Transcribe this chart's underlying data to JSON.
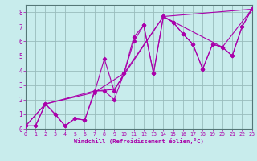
{
  "title": "",
  "xlabel": "Windchill (Refroidissement éolien,°C)",
  "bg_color": "#c8ecec",
  "line_color": "#aa00aa",
  "grid_color": "#99bbbb",
  "series1_x": [
    0,
    1,
    2,
    3,
    4,
    5,
    6,
    7,
    8,
    9,
    10,
    11,
    12,
    13,
    14,
    15,
    16,
    17,
    18,
    19,
    20,
    21,
    22,
    23
  ],
  "series1_y": [
    0.2,
    0.2,
    1.7,
    1.0,
    0.2,
    0.7,
    0.6,
    2.5,
    4.8,
    2.6,
    3.8,
    6.3,
    7.1,
    3.8,
    7.7,
    7.3,
    6.5,
    5.8,
    4.1,
    5.8,
    5.6,
    5.0,
    7.0,
    8.2
  ],
  "series2_x": [
    0,
    1,
    2,
    3,
    4,
    5,
    6,
    7,
    8,
    9,
    10,
    11,
    12,
    13,
    14,
    15,
    16,
    17,
    18,
    19,
    20,
    21,
    22,
    23
  ],
  "series2_y": [
    0.2,
    0.2,
    1.7,
    1.0,
    0.2,
    0.7,
    0.6,
    2.6,
    2.6,
    2.0,
    3.8,
    6.0,
    7.1,
    3.8,
    7.7,
    7.3,
    6.5,
    5.8,
    4.1,
    5.8,
    5.6,
    5.0,
    7.0,
    8.2
  ],
  "series3_x": [
    0,
    2,
    7,
    9,
    14,
    23
  ],
  "series3_y": [
    0.2,
    1.7,
    2.6,
    2.7,
    7.7,
    8.2
  ],
  "series4_x": [
    0,
    2,
    7,
    10,
    14,
    20,
    23
  ],
  "series4_y": [
    0.2,
    1.7,
    2.5,
    3.8,
    7.7,
    5.6,
    8.2
  ],
  "xlim": [
    0,
    23
  ],
  "ylim": [
    0,
    8.5
  ],
  "xticks": [
    0,
    1,
    2,
    3,
    4,
    5,
    6,
    7,
    8,
    9,
    10,
    11,
    12,
    13,
    14,
    15,
    16,
    17,
    18,
    19,
    20,
    21,
    22,
    23
  ],
  "yticks": [
    0,
    1,
    2,
    3,
    4,
    5,
    6,
    7,
    8
  ]
}
